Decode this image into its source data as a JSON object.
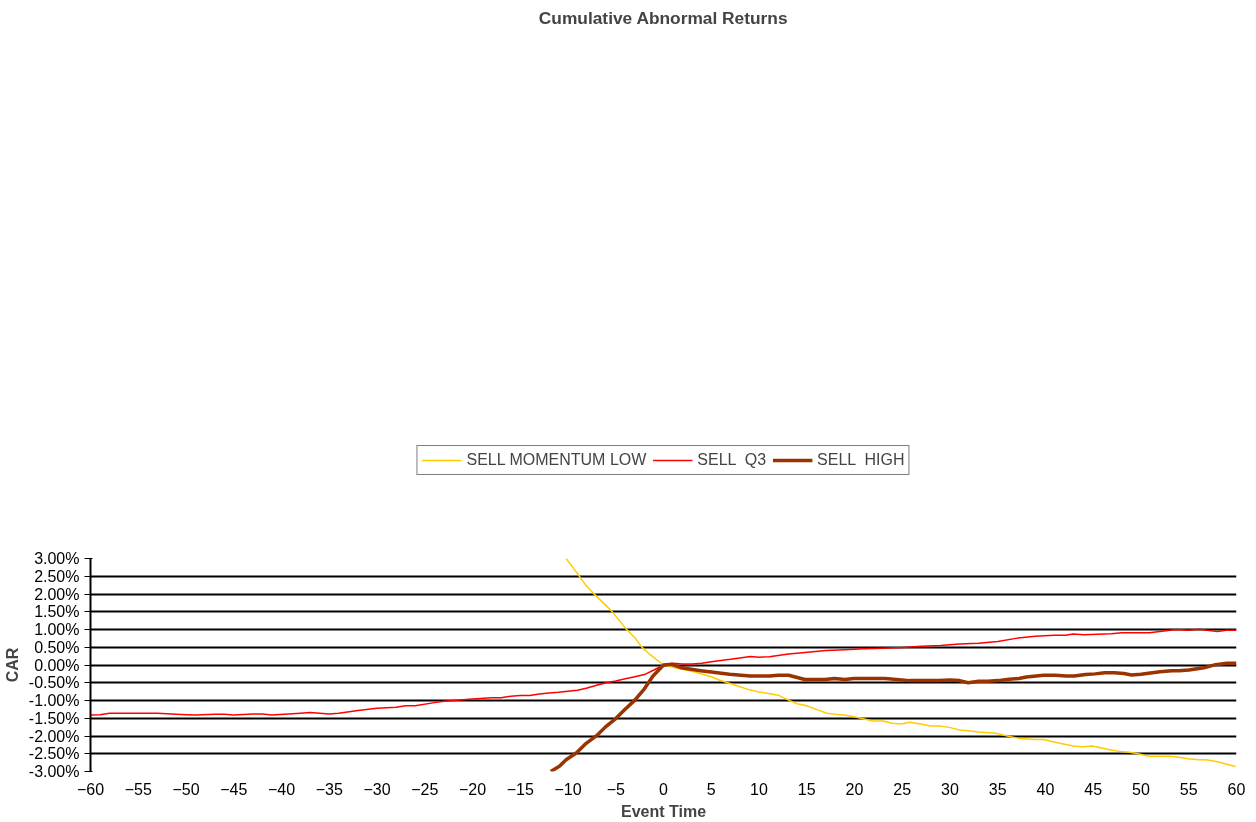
{
  "chart_data": {
    "type": "line",
    "title": "Cumulative Abnormal Returns",
    "xlabel": "Event Time",
    "ylabel": "CAR",
    "xlim": [
      -60,
      60
    ],
    "xticks": [
      -60,
      -55,
      -50,
      -45,
      -40,
      -35,
      -30,
      -25,
      -20,
      -15,
      -10,
      -5,
      0,
      5,
      10,
      15,
      20,
      25,
      30,
      35,
      40,
      45,
      50,
      55,
      60
    ],
    "ylim": [
      -3,
      3
    ],
    "yticks": [
      {
        "value": -3,
        "label": "-3.00%"
      },
      {
        "value": -2.5,
        "label": "-2.50%"
      },
      {
        "value": -2,
        "label": "-2.00%"
      },
      {
        "value": -1.5,
        "label": "-1.50%"
      },
      {
        "value": -1,
        "label": "-1.00%"
      },
      {
        "value": -0.5,
        "label": "-0.50%"
      },
      {
        "value": 0,
        "label": "0.00%"
      },
      {
        "value": 0.5,
        "label": "0.50%"
      },
      {
        "value": 1,
        "label": "1.00%"
      },
      {
        "value": 1.5,
        "label": "1.50%"
      },
      {
        "value": 2,
        "label": "2.00%"
      },
      {
        "value": 2.5,
        "label": "2.50%"
      },
      {
        "value": 3,
        "label": "3.00%"
      }
    ],
    "grid": "y",
    "legend": "top",
    "marker": "none",
    "line_style": "solid",
    "series": [
      {
        "name": "SELL MOMENTUM LOW",
        "color": "#ffcc00",
        "x": [
          -10.2,
          -9.1,
          -8.2,
          -7.3,
          -5.4,
          -3.9,
          -3.0,
          -2.3,
          -1.4,
          0,
          1.8,
          3.2,
          5,
          5.9,
          7.3,
          9,
          10,
          11,
          12,
          13.1,
          14,
          14.9,
          16,
          17.1,
          18,
          18.9,
          19.8,
          20.8,
          21.9,
          23,
          23.9,
          24.9,
          25.8,
          26.9,
          28,
          28.9,
          29.8,
          31,
          31.9,
          33,
          34.8,
          36,
          37.1,
          38.9,
          39.8,
          40.9,
          42,
          42.9,
          43.9,
          44.9,
          45.9,
          47,
          47.9,
          48.8,
          49.7,
          50.8,
          53,
          53.8,
          54.9,
          56,
          56.8,
          57.9,
          59.9
        ],
        "values": [
          3.0,
          2.61,
          2.27,
          2.01,
          1.51,
          1.01,
          0.77,
          0.51,
          0.29,
          0,
          -0.11,
          -0.19,
          -0.33,
          -0.43,
          -0.55,
          -0.7,
          -0.76,
          -0.8,
          -0.85,
          -0.99,
          -1.09,
          -1.14,
          -1.25,
          -1.36,
          -1.39,
          -1.41,
          -1.45,
          -1.51,
          -1.58,
          -1.58,
          -1.64,
          -1.66,
          -1.61,
          -1.66,
          -1.72,
          -1.72,
          -1.75,
          -1.83,
          -1.85,
          -1.89,
          -1.92,
          -2.0,
          -2.06,
          -2.1,
          -2.1,
          -2.17,
          -2.23,
          -2.28,
          -2.3,
          -2.28,
          -2.34,
          -2.4,
          -2.44,
          -2.46,
          -2.5,
          -2.57,
          -2.57,
          -2.59,
          -2.64,
          -2.67,
          -2.67,
          -2.72,
          -2.86
        ]
      },
      {
        "name": "SELL  Q3",
        "color": "#ff0000",
        "x": [
          -60,
          -59,
          -58,
          -53,
          -50,
          -49,
          -47,
          -46,
          -45,
          -43,
          -42,
          -41,
          -38,
          -37,
          -35,
          -34,
          -32,
          -30,
          -28,
          -27,
          -26,
          -24,
          -23,
          -21,
          -20,
          -18,
          -17,
          -16,
          -15,
          -14,
          -13,
          -12,
          -11,
          -10,
          -9,
          -8,
          -7,
          -6,
          -5,
          -4,
          -3,
          -2,
          -1,
          0,
          1,
          2,
          3,
          4,
          5,
          6,
          7,
          8,
          9.1,
          10,
          11.1,
          12,
          13.1,
          15.1,
          17,
          19,
          21,
          23,
          25,
          27,
          29,
          31,
          33,
          35,
          36.9,
          38.9,
          40.9,
          42.1,
          42.9,
          44,
          46.9,
          48,
          50.9,
          53.7,
          55,
          56.1,
          58,
          58.9,
          60
        ],
        "values": [
          -1.41,
          -1.4,
          -1.36,
          -1.36,
          -1.4,
          -1.41,
          -1.39,
          -1.39,
          -1.41,
          -1.38,
          -1.38,
          -1.41,
          -1.36,
          -1.34,
          -1.38,
          -1.36,
          -1.28,
          -1.22,
          -1.19,
          -1.15,
          -1.15,
          -1.06,
          -1.02,
          -0.98,
          -0.96,
          -0.92,
          -0.92,
          -0.88,
          -0.86,
          -0.86,
          -0.82,
          -0.79,
          -0.77,
          -0.74,
          -0.71,
          -0.65,
          -0.57,
          -0.5,
          -0.45,
          -0.39,
          -0.33,
          -0.27,
          -0.14,
          0,
          0.05,
          0.03,
          0.03,
          0.05,
          0.09,
          0.13,
          0.16,
          0.2,
          0.24,
          0.22,
          0.23,
          0.27,
          0.31,
          0.36,
          0.41,
          0.43,
          0.46,
          0.47,
          0.49,
          0.53,
          0.55,
          0.59,
          0.61,
          0.66,
          0.75,
          0.81,
          0.84,
          0.84,
          0.87,
          0.85,
          0.88,
          0.91,
          0.91,
          1.0,
          0.98,
          1.01,
          0.94,
          0.98,
          0.98
        ]
      },
      {
        "name": "SELL  HIGH",
        "color": "#993300",
        "x": [
          -11.8,
          -10.9,
          -10.2,
          -9.1,
          -8.2,
          -7.0,
          -6.1,
          -5.0,
          -4.1,
          -3.0,
          -2.0,
          -1.1,
          0,
          0.9,
          1.9,
          3.9,
          5,
          6.9,
          9.1,
          11.1,
          12,
          13.1,
          14.8,
          16.9,
          17.9,
          19,
          19.9,
          23.2,
          25.8,
          28.8,
          30,
          31,
          31.9,
          33,
          34,
          35,
          36.2,
          37.2,
          38,
          39.8,
          41,
          42.2,
          43,
          44.2,
          45.2,
          46.2,
          47.2,
          48.2,
          49,
          50,
          52,
          53.2,
          54,
          55,
          56.6,
          57.8,
          59,
          60
        ],
        "values": [
          -3.0,
          -2.85,
          -2.67,
          -2.47,
          -2.23,
          -1.99,
          -1.75,
          -1.51,
          -1.27,
          -0.99,
          -0.67,
          -0.31,
          0,
          0.02,
          -0.08,
          -0.16,
          -0.2,
          -0.26,
          -0.31,
          -0.31,
          -0.29,
          -0.29,
          -0.41,
          -0.41,
          -0.38,
          -0.41,
          -0.38,
          -0.38,
          -0.44,
          -0.44,
          -0.42,
          -0.44,
          -0.5,
          -0.46,
          -0.46,
          -0.44,
          -0.4,
          -0.38,
          -0.34,
          -0.29,
          -0.29,
          -0.31,
          -0.31,
          -0.27,
          -0.25,
          -0.22,
          -0.22,
          -0.24,
          -0.28,
          -0.26,
          -0.19,
          -0.16,
          -0.16,
          -0.14,
          -0.08,
          0.01,
          0.05,
          0.05
        ]
      }
    ]
  }
}
